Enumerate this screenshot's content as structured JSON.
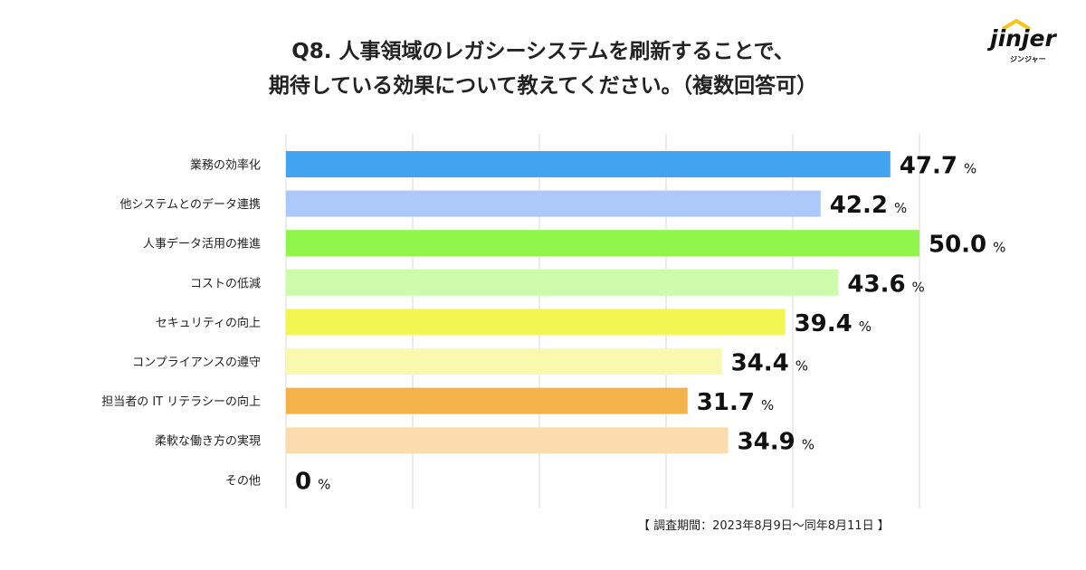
{
  "title_line1": "Q8. 人事領域のレガシーシステムを刷新することで、",
  "title_line2": "期待している効果について教えてください。（複数回答可）",
  "logo": {
    "text": "jinjer",
    "sub": "ジンジャー"
  },
  "footnote": "【 調査期間：2023年8月9日〜同年8月11日 】",
  "chart_data": {
    "type": "bar",
    "orientation": "horizontal",
    "unit": "%",
    "xlim": [
      0,
      50
    ],
    "grid": true,
    "categories": [
      "業務の効率化",
      "他システムとのデータ連携",
      "人事データ活用の推進",
      "コストの低減",
      "セキュリティの向上",
      "コンプライアンスの遵守",
      "担当者の IT リテラシーの向上",
      "柔軟な働き方の実現",
      "その他"
    ],
    "values": [
      47.7,
      42.2,
      50.0,
      43.6,
      39.4,
      34.4,
      31.7,
      34.9,
      0
    ],
    "value_labels": [
      "47.7",
      "42.2",
      "50.0",
      "43.6",
      "39.4",
      "34.4",
      "31.7",
      "34.9",
      "0"
    ],
    "colors": [
      "#41a4f0",
      "#adc8fa",
      "#90f54a",
      "#ccfcab",
      "#f3f550",
      "#f8f8ae",
      "#f4b24a",
      "#fadcaf",
      "#ffffff"
    ]
  }
}
